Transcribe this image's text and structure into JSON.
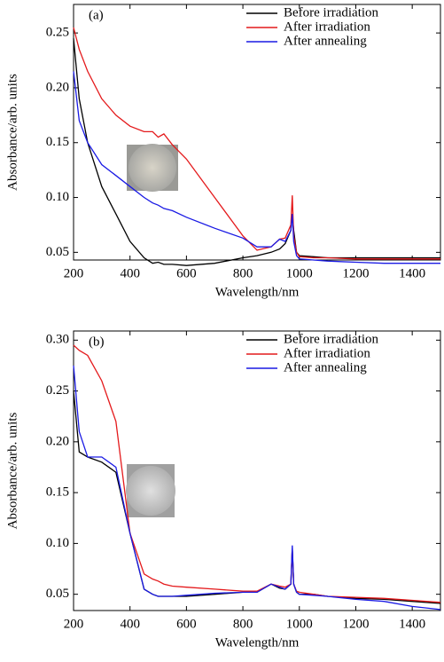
{
  "chart_data": [
    {
      "type": "line",
      "annotation": "(a)",
      "x_label": "Wavelength/nm",
      "y_label": "Absorbance/arb. units",
      "x": [
        200,
        220,
        250,
        300,
        350,
        400,
        450,
        480,
        500,
        520,
        550,
        600,
        700,
        800,
        850,
        900,
        930,
        950,
        970,
        975,
        980,
        990,
        1000,
        1050,
        1100,
        1200,
        1300,
        1400,
        1500
      ],
      "xlim": [
        200,
        1500
      ],
      "xticks": [
        200,
        400,
        600,
        800,
        1000,
        1200,
        1400
      ],
      "ylim": [
        0.043,
        0.276
      ],
      "yticks": [
        0.05,
        {
          "value": 0.1,
          "label": "0.10"
        },
        0.15,
        {
          "value": 0.2,
          "label": "0.20"
        },
        0.25
      ],
      "legend": "top-right",
      "series": [
        {
          "name": "Before irradiation",
          "color": "#000000",
          "values": [
            0.245,
            0.19,
            0.15,
            0.11,
            0.085,
            0.06,
            0.045,
            0.04,
            0.041,
            0.039,
            0.039,
            0.038,
            0.04,
            0.045,
            0.047,
            0.05,
            0.053,
            0.058,
            0.07,
            0.085,
            0.07,
            0.05,
            0.047,
            0.046,
            0.045,
            0.045,
            0.045,
            0.045,
            0.045
          ]
        },
        {
          "name": "After irradiation",
          "color": "#e41a1c",
          "values": [
            0.255,
            0.235,
            0.215,
            0.19,
            0.175,
            0.165,
            0.16,
            0.16,
            0.155,
            0.158,
            0.148,
            0.135,
            0.1,
            0.065,
            0.052,
            0.055,
            0.062,
            0.063,
            0.075,
            0.102,
            0.065,
            0.05,
            0.046,
            0.045,
            0.045,
            0.044,
            0.044,
            0.044,
            0.044
          ]
        },
        {
          "name": "After annealing",
          "color": "#1a1ae4",
          "values": [
            0.215,
            0.17,
            0.15,
            0.13,
            0.12,
            0.11,
            0.1,
            0.095,
            0.093,
            0.09,
            0.088,
            0.082,
            0.072,
            0.063,
            0.055,
            0.055,
            0.062,
            0.06,
            0.07,
            0.085,
            0.06,
            0.047,
            0.044,
            0.043,
            0.042,
            0.041,
            0.04,
            0.04,
            0.04
          ]
        }
      ]
    },
    {
      "type": "line",
      "annotation": "(b)",
      "x_label": "Wavelength/nm",
      "y_label": "Absorbance/arb. units",
      "x": [
        200,
        220,
        250,
        300,
        350,
        400,
        450,
        480,
        500,
        520,
        550,
        600,
        700,
        800,
        850,
        900,
        930,
        950,
        970,
        975,
        980,
        990,
        1000,
        1050,
        1100,
        1200,
        1300,
        1400,
        1500
      ],
      "xlim": [
        200,
        1500
      ],
      "xticks": [
        200,
        400,
        600,
        800,
        1000,
        1200,
        1400
      ],
      "ylim": [
        0.034,
        0.309
      ],
      "yticks": [
        0.05,
        {
          "value": 0.1,
          "label": "0.10"
        },
        0.15,
        {
          "value": 0.2,
          "label": "0.20"
        },
        0.25,
        {
          "value": 0.3,
          "label": "0.30"
        }
      ],
      "legend": "top-right",
      "series": [
        {
          "name": "Before irradiation",
          "color": "#000000",
          "values": [
            0.25,
            0.19,
            0.185,
            0.18,
            0.17,
            0.11,
            0.055,
            0.05,
            0.048,
            0.048,
            0.048,
            0.048,
            0.05,
            0.052,
            0.052,
            0.06,
            0.056,
            0.055,
            0.06,
            0.095,
            0.06,
            0.052,
            0.05,
            0.05,
            0.048,
            0.046,
            0.045,
            0.043,
            0.041
          ]
        },
        {
          "name": "After irradiation",
          "color": "#e41a1c",
          "values": [
            0.295,
            0.29,
            0.285,
            0.26,
            0.22,
            0.11,
            0.07,
            0.065,
            0.063,
            0.06,
            0.058,
            0.057,
            0.055,
            0.053,
            0.053,
            0.06,
            0.058,
            0.057,
            0.06,
            0.095,
            0.06,
            0.053,
            0.052,
            0.05,
            0.048,
            0.047,
            0.046,
            0.044,
            0.042
          ]
        },
        {
          "name": "After annealing",
          "color": "#1a1ae4",
          "values": [
            0.275,
            0.21,
            0.185,
            0.185,
            0.175,
            0.11,
            0.055,
            0.05,
            0.048,
            0.048,
            0.048,
            0.049,
            0.051,
            0.052,
            0.052,
            0.06,
            0.057,
            0.055,
            0.06,
            0.098,
            0.06,
            0.052,
            0.05,
            0.049,
            0.048,
            0.045,
            0.043,
            0.038,
            0.035
          ]
        }
      ]
    }
  ]
}
